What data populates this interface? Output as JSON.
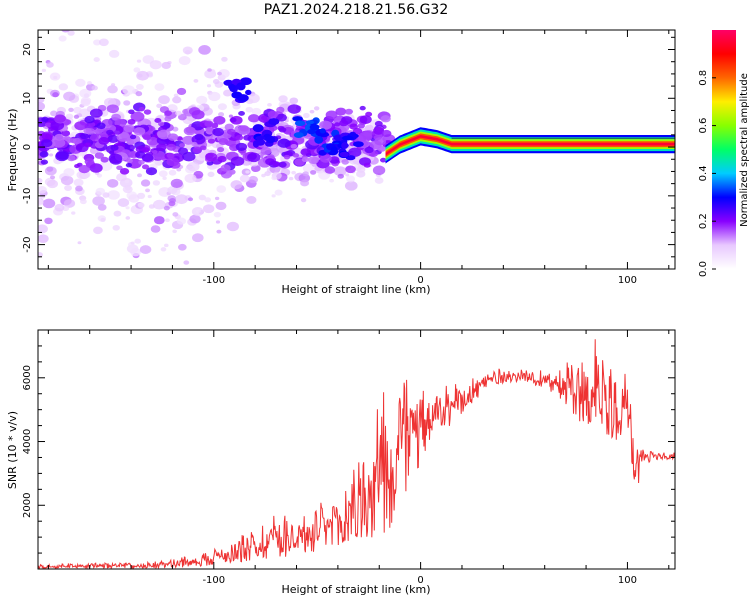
{
  "page": {
    "title": "PAZ1.2024.218.21.56.G32"
  },
  "chart_data": [
    {
      "type": "heatmap",
      "xlabel": "Height of straight line (km)",
      "ylabel": "Frequency (Hz)",
      "xlim": [
        -185,
        123
      ],
      "ylim": [
        -25,
        24
      ],
      "xticks": [
        -100,
        0,
        100
      ],
      "yticks": [
        -20,
        -10,
        0,
        10,
        20
      ],
      "grid": false,
      "colorbar": {
        "label": "Normalized spectral amplitude",
        "ticks": [
          0.0,
          0.2,
          0.4,
          0.6,
          0.8
        ],
        "range": [
          0,
          1
        ],
        "colormap": "rainbow",
        "stops": [
          "#ffffff",
          "#e8c8ff",
          "#8800ff",
          "#0000ff",
          "#00ccff",
          "#00ff66",
          "#88ff00",
          "#ffee00",
          "#ff6600",
          "#ff0000",
          "#ff0066"
        ]
      },
      "ridge": {
        "description_points": [
          {
            "x": -17,
            "y": -1.5
          },
          {
            "x": -10,
            "y": 0.5
          },
          {
            "x": 0,
            "y": 2.2
          },
          {
            "x": 8,
            "y": 1.6
          },
          {
            "x": 15,
            "y": 0.6
          },
          {
            "x": 123,
            "y": 0.6
          }
        ],
        "band_center_hz": 0.6,
        "band_halfwidth_hz": 1.1
      },
      "features": [
        {
          "x": -88,
          "y": 11,
          "amp": 0.25
        },
        {
          "x": -75,
          "y": 3,
          "amp": 0.25
        },
        {
          "x": -55,
          "y": 4,
          "amp": 0.3
        },
        {
          "x": -45,
          "y": 1,
          "amp": 0.28
        },
        {
          "x": -35,
          "y": 0,
          "amp": 0.25
        }
      ]
    },
    {
      "type": "line",
      "xlabel": "Height of straight line (km)",
      "ylabel": "SNR (10 * v/v)",
      "xlim": [
        -185,
        123
      ],
      "ylim": [
        0,
        7500
      ],
      "xticks": [
        -100,
        0,
        100
      ],
      "yticks": [
        2000,
        4000,
        6000
      ],
      "grid": false,
      "color": "#ee3333",
      "envelope": [
        {
          "x": -185,
          "lo": 20,
          "hi": 160
        },
        {
          "x": -130,
          "lo": 30,
          "hi": 220
        },
        {
          "x": -110,
          "lo": 60,
          "hi": 420
        },
        {
          "x": -90,
          "lo": 200,
          "hi": 900
        },
        {
          "x": -70,
          "lo": 350,
          "hi": 1800
        },
        {
          "x": -55,
          "lo": 450,
          "hi": 1900
        },
        {
          "x": -40,
          "lo": 600,
          "hi": 2300
        },
        {
          "x": -28,
          "lo": 800,
          "hi": 3800
        },
        {
          "x": -18,
          "lo": 700,
          "hi": 5600
        },
        {
          "x": -8,
          "lo": 2300,
          "hi": 6100
        },
        {
          "x": 5,
          "lo": 3800,
          "hi": 5500
        },
        {
          "x": 20,
          "lo": 4900,
          "hi": 6000
        },
        {
          "x": 35,
          "lo": 5800,
          "hi": 6300
        },
        {
          "x": 50,
          "lo": 5900,
          "hi": 6250
        },
        {
          "x": 65,
          "lo": 5500,
          "hi": 6400
        },
        {
          "x": 75,
          "lo": 4700,
          "hi": 6800
        },
        {
          "x": 85,
          "lo": 4300,
          "hi": 7300
        },
        {
          "x": 95,
          "lo": 4000,
          "hi": 6700
        },
        {
          "x": 100,
          "lo": 4500,
          "hi": 6500
        },
        {
          "x": 103,
          "lo": 2400,
          "hi": 4200
        },
        {
          "x": 108,
          "lo": 3000,
          "hi": 4000
        },
        {
          "x": 112,
          "lo": 3400,
          "hi": 3700
        },
        {
          "x": 123,
          "lo": 3450,
          "hi": 3650
        }
      ]
    }
  ]
}
